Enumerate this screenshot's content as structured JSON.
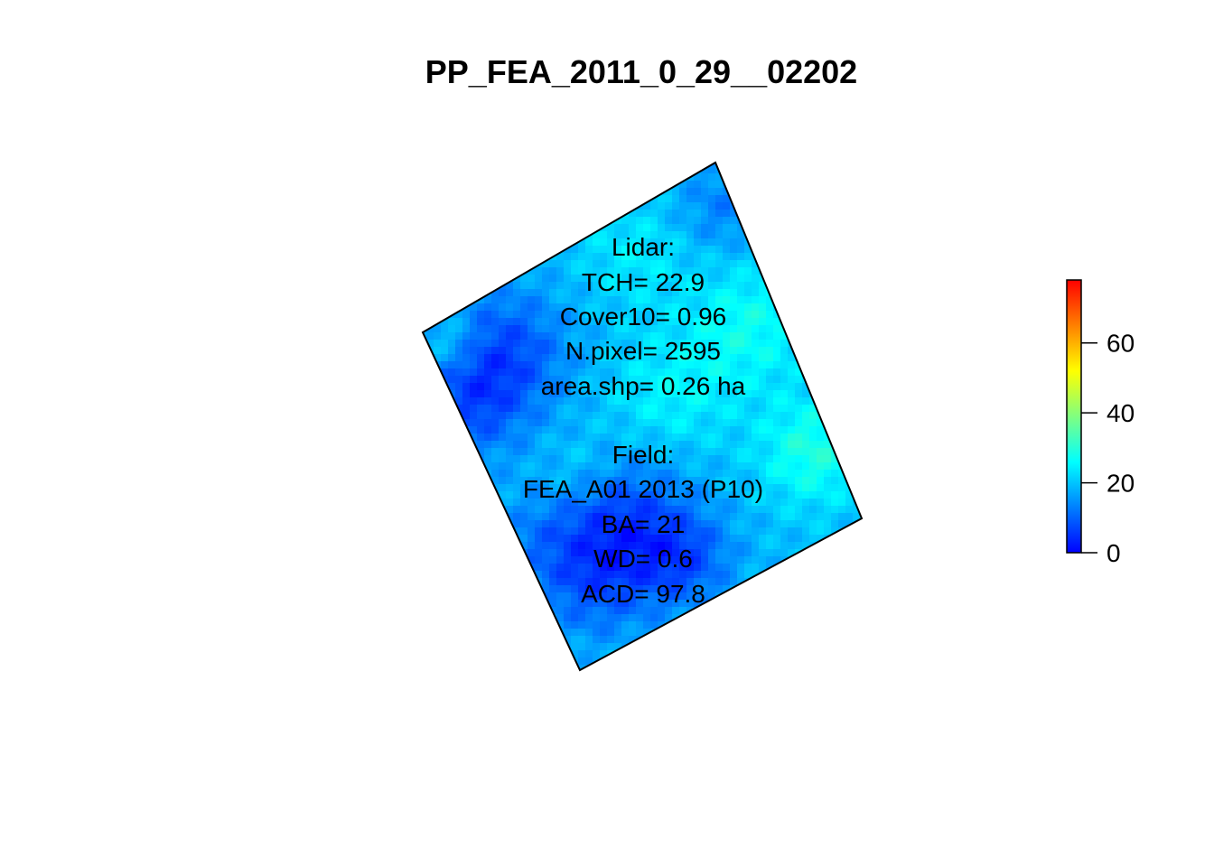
{
  "chart_data": {
    "type": "heatmap",
    "title": "PP_FEA_2011_0_29__02202",
    "colorbar": {
      "range": [
        0,
        78
      ],
      "ticks": [
        0,
        20,
        40,
        60
      ],
      "tick_labels": [
        "0",
        "20",
        "40",
        "60"
      ],
      "colors": [
        "#0000ff",
        "#0080ff",
        "#00ffff",
        "#80ff80",
        "#ffff00",
        "#ff8000",
        "#ff0000"
      ]
    },
    "annotations": {
      "lidar": [
        "Lidar:",
        "TCH= 22.9",
        "Cover10= 0.96",
        "N.pixel= 2595",
        "area.shp= 0.26 ha"
      ],
      "field": [
        "Field:",
        "FEA_A01 2013 (P10)",
        "BA= 21",
        "WD= 0.6",
        "ACD= 97.8"
      ]
    },
    "grid": false,
    "legend_placement": "right"
  }
}
